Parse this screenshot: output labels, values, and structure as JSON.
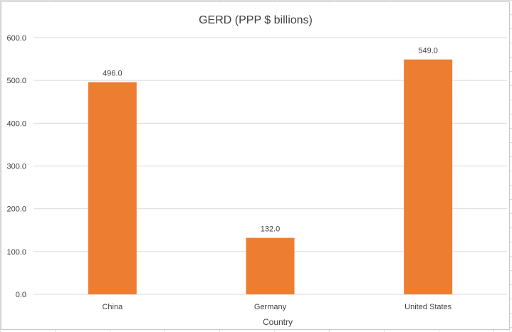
{
  "chart_data": {
    "type": "bar",
    "title": "GERD (PPP $ billions)",
    "xlabel": "Country",
    "ylabel": "",
    "categories": [
      "China",
      "Germany",
      "United States"
    ],
    "values": [
      496.0,
      132.0,
      549.0
    ],
    "data_labels": [
      "496.0",
      "132.0",
      "549.0"
    ],
    "ylim": [
      0,
      600
    ],
    "yticks": [
      0,
      100,
      200,
      300,
      400,
      500,
      600
    ],
    "ytick_labels": [
      "0.0",
      "100.0",
      "200.0",
      "300.0",
      "400.0",
      "500.0",
      "600.0"
    ],
    "grid": true,
    "legend": "none",
    "bar_color": "#ED7D31",
    "gridline_color": "#D9D9D9"
  }
}
